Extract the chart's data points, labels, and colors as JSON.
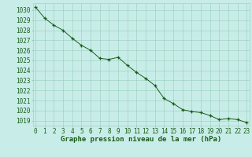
{
  "x": [
    0,
    1,
    2,
    3,
    4,
    5,
    6,
    7,
    8,
    9,
    10,
    11,
    12,
    13,
    14,
    15,
    16,
    17,
    18,
    19,
    20,
    21,
    22,
    23
  ],
  "y": [
    1030.3,
    1029.2,
    1028.5,
    1028.0,
    1027.2,
    1026.5,
    1026.0,
    1025.2,
    1025.1,
    1025.3,
    1024.5,
    1023.8,
    1023.2,
    1022.5,
    1021.2,
    1020.7,
    1020.1,
    1019.9,
    1019.8,
    1019.5,
    1019.1,
    1019.2,
    1019.1,
    1018.8
  ],
  "ylim_min": 1018.5,
  "ylim_max": 1030.7,
  "yticks": [
    1019,
    1020,
    1021,
    1022,
    1023,
    1024,
    1025,
    1026,
    1027,
    1028,
    1029,
    1030
  ],
  "xticks": [
    0,
    1,
    2,
    3,
    4,
    5,
    6,
    7,
    8,
    9,
    10,
    11,
    12,
    13,
    14,
    15,
    16,
    17,
    18,
    19,
    20,
    21,
    22,
    23
  ],
  "line_color": "#1a5c1a",
  "marker_color": "#1a5c1a",
  "bg_color": "#c8ede8",
  "grid_color": "#99ccbb",
  "xlabel": "Graphe pression niveau de la mer (hPa)",
  "xlabel_color": "#1a5c1a",
  "tick_label_color": "#1a5c1a",
  "xlabel_fontsize": 6.5,
  "tick_fontsize": 5.5,
  "linewidth": 0.7,
  "markersize": 3.5,
  "markeredgewidth": 0.9
}
